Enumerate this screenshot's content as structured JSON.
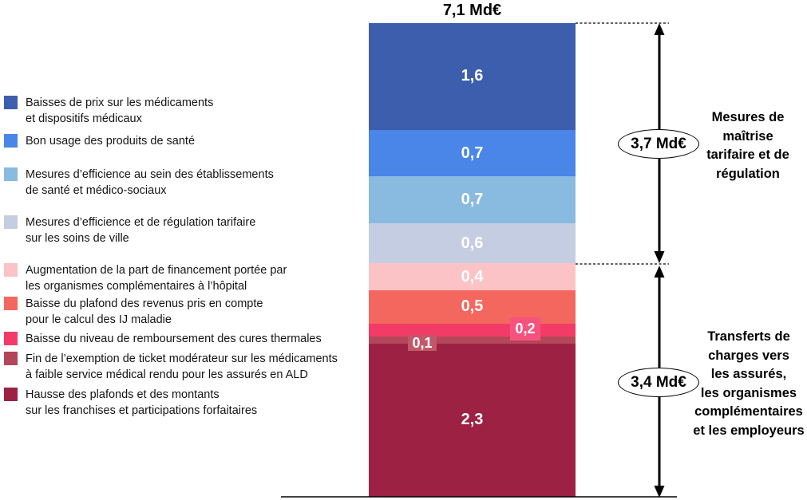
{
  "chart_data": {
    "type": "bar",
    "subtype": "single-stacked-column",
    "title": "7,1 Md€",
    "total_value": 7.1,
    "unit": "Md€",
    "legend_position": "left",
    "value_label_color": "#FFFFFF",
    "segments": [
      {
        "name": "Baisses de prix sur les médicaments et dispositifs médicaux",
        "legend_lines": [
          "Baisses de prix sur les médicaments",
          "et dispositifs médicaux"
        ],
        "value": 1.6,
        "value_label": "1,6",
        "color": "#3C5EAC",
        "label_placement": "center"
      },
      {
        "name": "Bon usage des produits de santé",
        "legend_lines": [
          "Bon usage des produits de santé"
        ],
        "value": 0.7,
        "value_label": "0,7",
        "color": "#4A86E8",
        "label_placement": "center"
      },
      {
        "name": "Mesures d’efficience au sein des établissements de santé et médico-sociaux",
        "legend_lines": [
          "Mesures d’efficience au sein des établissements",
          "de santé et médico-sociaux"
        ],
        "value": 0.7,
        "value_label": "0,7",
        "color": "#89BAE0",
        "label_placement": "center"
      },
      {
        "name": "Mesures d’efficience et de régulation tarifaire sur les soins de ville",
        "legend_lines": [
          "Mesures d’efficience et de régulation tarifaire",
          "sur les soins de ville"
        ],
        "value": 0.6,
        "value_label": "0,6",
        "color": "#C5CDE2",
        "label_placement": "center"
      },
      {
        "name": "Augmentation de la part de financement portée par les organismes complémentaires à l’hôpital",
        "legend_lines": [
          "Augmentation de la part de financement portée par",
          "les organismes complémentaires à l’hôpital"
        ],
        "value": 0.4,
        "value_label": "0,4",
        "color": "#FCC3C6",
        "label_placement": "center"
      },
      {
        "name": "Baisse du plafond des revenus pris en compte pour le calcul des IJ maladie",
        "legend_lines": [
          "Baisse du plafond des revenus pris en compte",
          "pour le calcul des IJ maladie"
        ],
        "value": 0.5,
        "value_label": "0,5",
        "color": "#F3675E",
        "label_placement": "center"
      },
      {
        "name": "Baisse du niveau de remboursement des cures thermales",
        "legend_lines": [
          "Baisse du niveau de remboursement des cures thermales"
        ],
        "value": 0.2,
        "value_label": "0,2",
        "color": "#F33B67",
        "label_placement": "boxed-right",
        "label_box_color": "#F7527E"
      },
      {
        "name": "Fin de l’exemption de ticket modérateur sur les médicaments à faible service médical rendu pour les assurés en ALD",
        "legend_lines": [
          "Fin de l’exemption de ticket modérateur sur les médicaments",
          "à faible service médical rendu pour les assurés en ALD"
        ],
        "value": 0.1,
        "value_label": "0,1",
        "color": "#B4465A",
        "label_placement": "boxed-left",
        "label_box_color": "#C25768"
      },
      {
        "name": "Hausse des plafonds et des montants sur les franchises et participations forfaitaires",
        "legend_lines": [
          "Hausse des plafonds et des montants",
          "sur les franchises et participations forfaitaires"
        ],
        "value": 2.3,
        "value_label": "2,3",
        "color": "#9C2143",
        "label_placement": "center"
      }
    ],
    "groups": [
      {
        "name": "Mesures de maîtrise tarifaire et de régulation",
        "label_lines": [
          "Mesures de",
          "maîtrise",
          "tarifaire et de",
          "régulation"
        ],
        "value": 3.7,
        "value_label": "3,7 Md€"
      },
      {
        "name": "Transferts de charges vers les assurés, les organismes complémentaires et les employeurs",
        "label_lines": [
          "Transferts de",
          "charges vers",
          "les assurés,",
          "les organismes",
          "complémentaires",
          "et les employeurs"
        ],
        "value": 3.4,
        "value_label": "3,4 Md€"
      }
    ]
  }
}
